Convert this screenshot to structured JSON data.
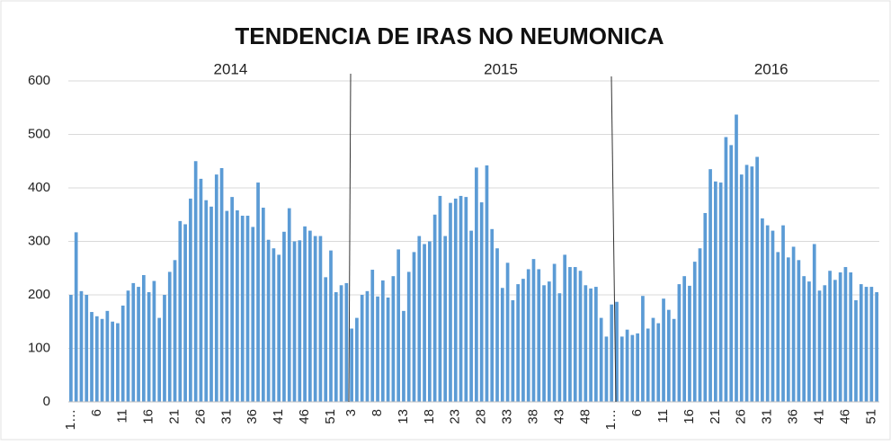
{
  "chart_data": {
    "type": "bar",
    "title": "TENDENCIA DE IRAS NO NEUMONICA",
    "annotations": [
      "2014",
      "2015",
      "2016"
    ],
    "categories": [
      "1…",
      null,
      null,
      null,
      null,
      "6",
      null,
      null,
      null,
      null,
      "11",
      null,
      null,
      null,
      null,
      "16",
      null,
      null,
      null,
      null,
      "21",
      null,
      null,
      null,
      null,
      "26",
      null,
      null,
      null,
      null,
      "31",
      null,
      null,
      null,
      null,
      "36",
      null,
      null,
      null,
      null,
      "41",
      null,
      null,
      null,
      null,
      "46",
      null,
      null,
      null,
      null,
      "51",
      null,
      null,
      null,
      "3",
      null,
      null,
      null,
      null,
      "8",
      null,
      null,
      null,
      null,
      "13",
      null,
      null,
      null,
      null,
      "18",
      null,
      null,
      null,
      null,
      "23",
      null,
      null,
      null,
      null,
      "28",
      null,
      null,
      null,
      null,
      "33",
      null,
      null,
      null,
      null,
      "38",
      null,
      null,
      null,
      null,
      "43",
      null,
      null,
      null,
      null,
      "48",
      null,
      null,
      null,
      null,
      "1…",
      null,
      null,
      null,
      null,
      "6",
      null,
      null,
      null,
      null,
      "11",
      null,
      null,
      null,
      null,
      "16",
      null,
      null,
      null,
      null,
      "21",
      null,
      null,
      null,
      null,
      "26",
      null,
      null,
      null,
      null,
      "31",
      null,
      null,
      null,
      null,
      "36",
      null,
      null,
      null,
      null,
      "41",
      null,
      null,
      null,
      null,
      "46",
      null,
      null,
      null,
      null,
      "51",
      null
    ],
    "values": [
      200,
      317,
      207,
      200,
      168,
      160,
      155,
      170,
      150,
      147,
      180,
      208,
      222,
      215,
      237,
      205,
      226,
      157,
      200,
      243,
      265,
      338,
      332,
      380,
      450,
      417,
      377,
      365,
      425,
      437,
      357,
      383,
      358,
      348,
      348,
      327,
      410,
      363,
      303,
      287,
      275,
      318,
      362,
      300,
      302,
      328,
      320,
      310,
      310,
      233,
      283,
      205,
      218,
      222,
      137,
      157,
      200,
      207,
      247,
      197,
      227,
      195,
      235,
      285,
      170,
      243,
      280,
      310,
      295,
      300,
      350,
      385,
      310,
      372,
      380,
      385,
      383,
      320,
      438,
      373,
      442,
      323,
      287,
      213,
      260,
      190,
      220,
      230,
      248,
      267,
      248,
      218,
      225,
      258,
      203,
      275,
      252,
      252,
      245,
      218,
      212,
      215,
      157,
      122,
      182,
      187,
      122,
      135,
      125,
      128,
      198,
      137,
      157,
      147,
      193,
      172,
      155,
      220,
      235,
      217,
      262,
      287,
      353,
      435,
      412,
      410,
      495,
      480,
      537,
      425,
      443,
      440,
      458,
      343,
      330,
      320,
      280,
      330,
      270,
      290,
      265,
      235,
      225,
      295,
      208,
      218,
      245,
      228,
      242,
      252,
      242,
      190,
      220,
      215,
      215,
      205
    ],
    "color": "#5b9bd5",
    "ylim": [
      0,
      600
    ],
    "yticks": [
      0,
      100,
      200,
      300,
      400,
      500,
      600
    ],
    "grid": true
  }
}
